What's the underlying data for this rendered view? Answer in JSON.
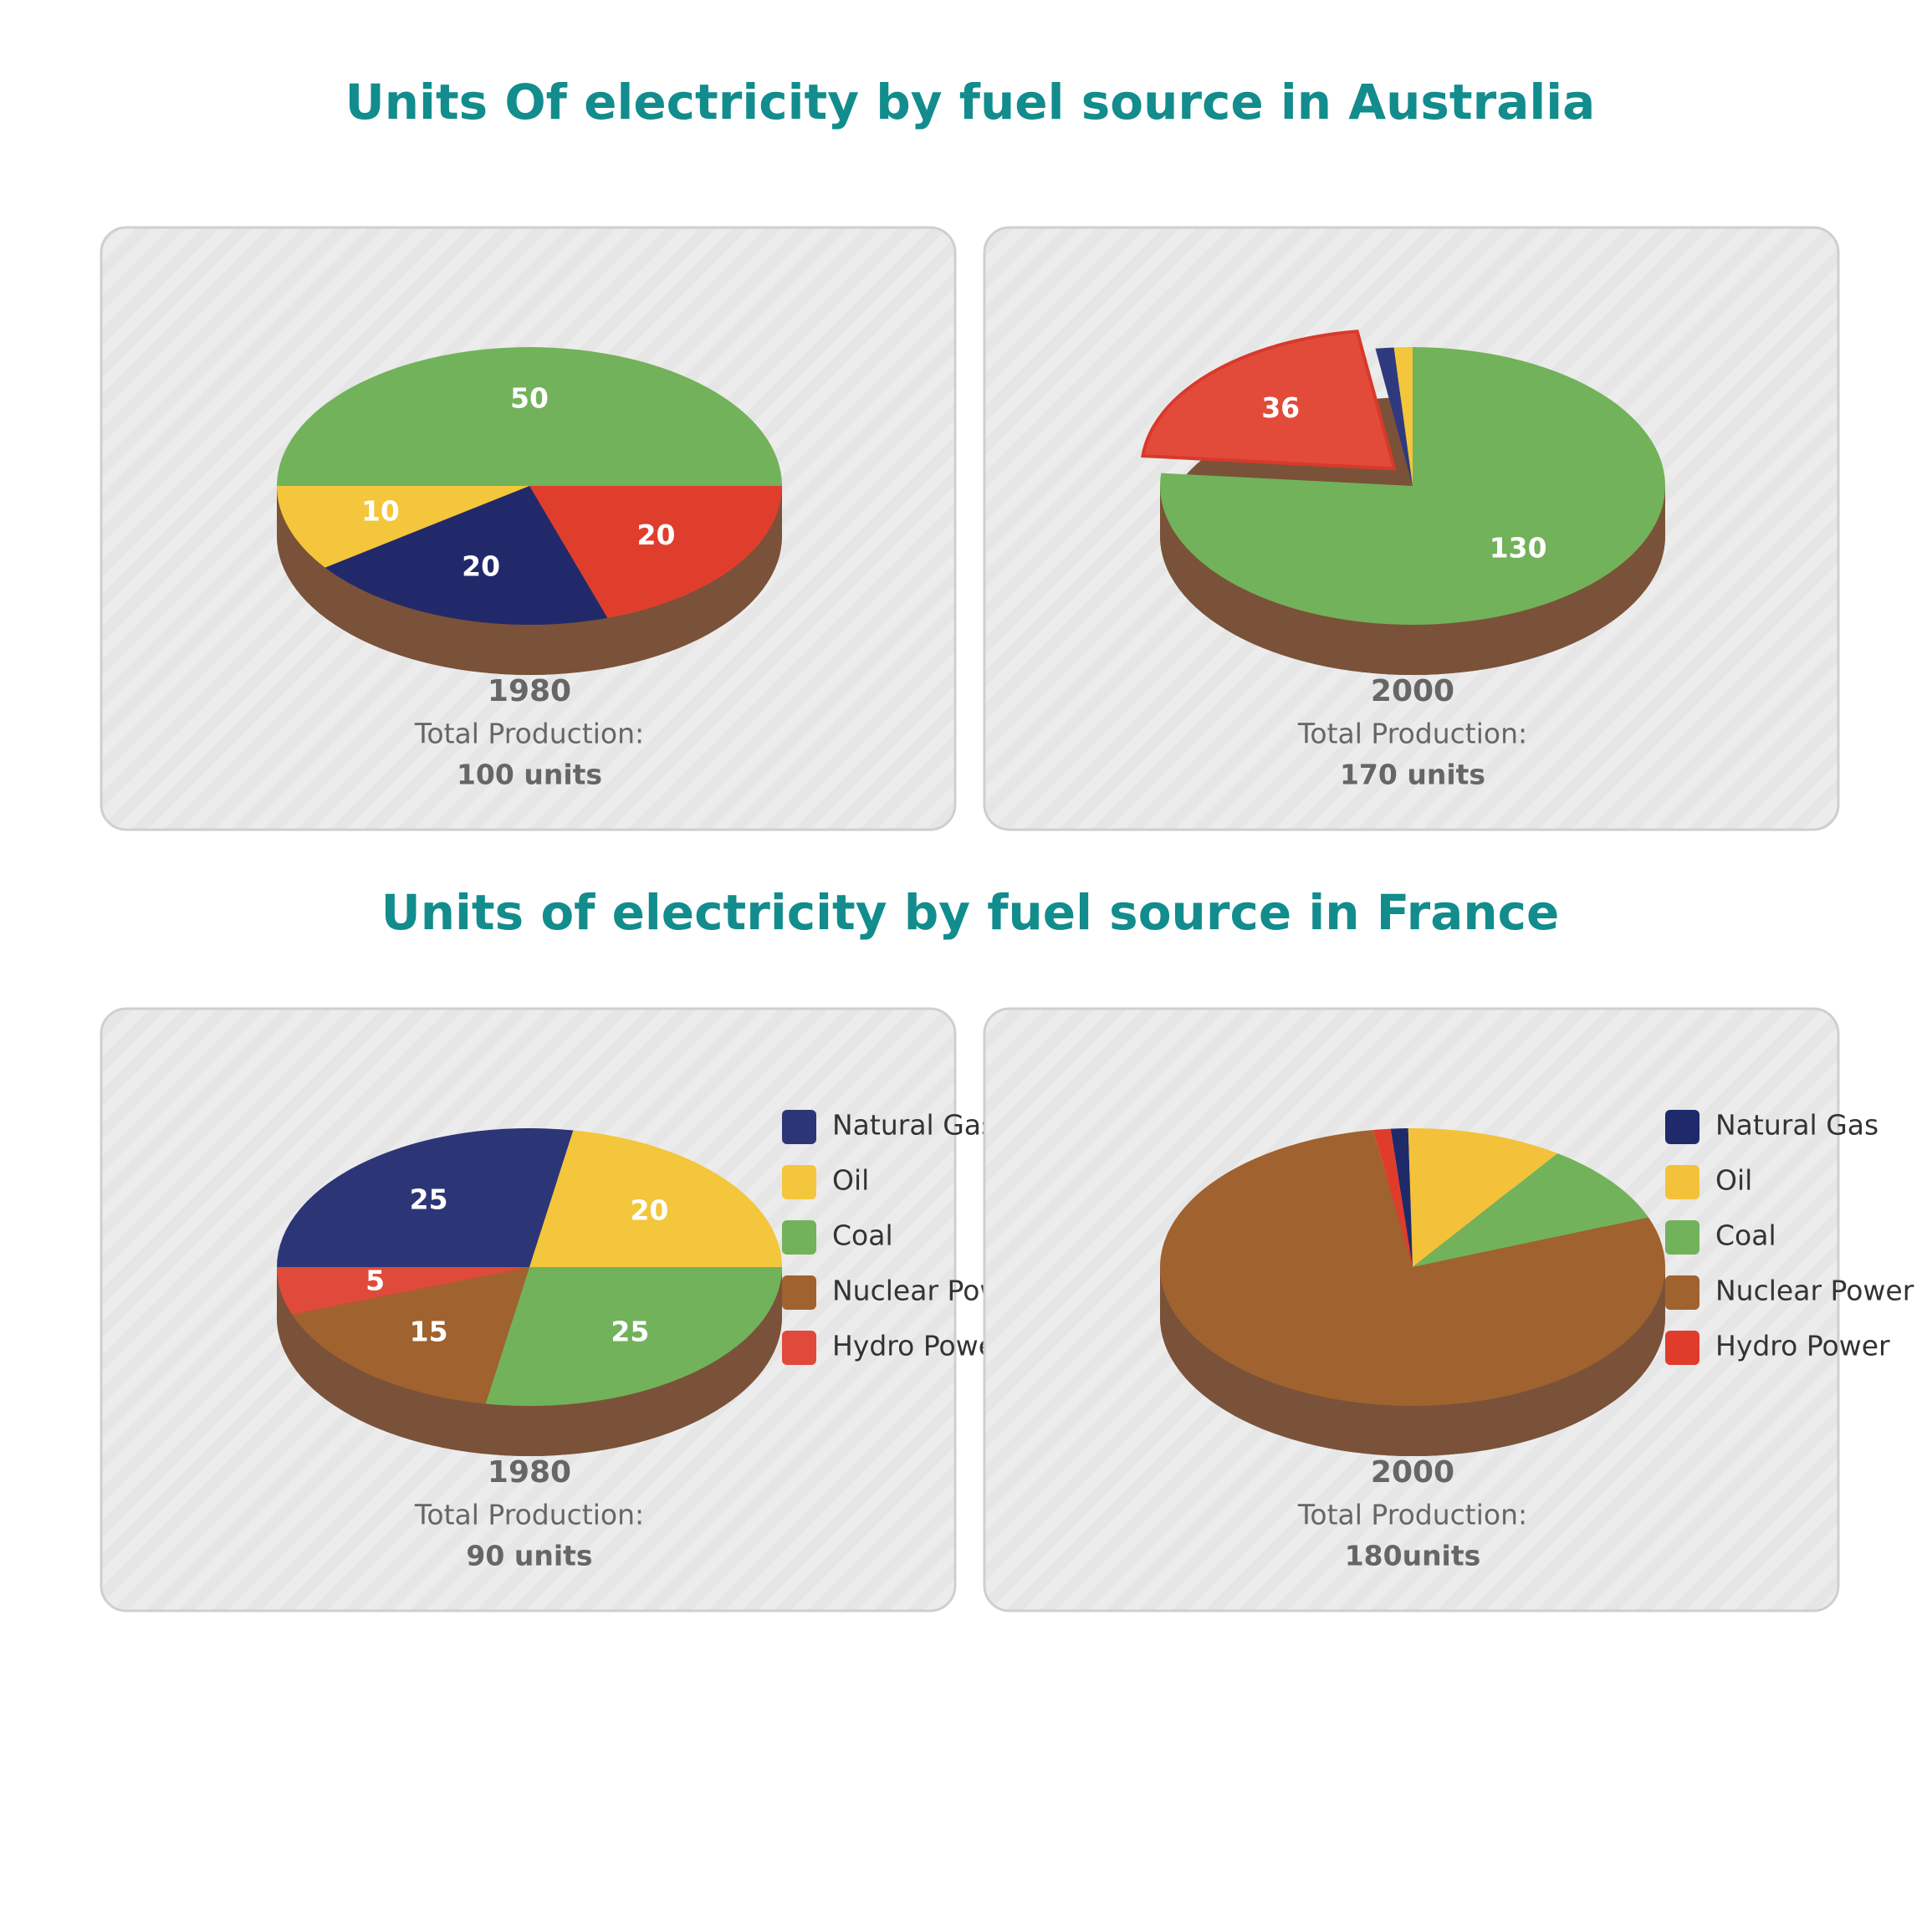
{
  "headings": [
    "Units Of electricity by fuel source in Australia",
    "Units of electricity by fuel source in France"
  ],
  "chart_data": [
    {
      "type": "pie",
      "year": "1980",
      "total_label": "Total Production:",
      "total": "100 units",
      "categories": [
        "Coal",
        "Hydro Power",
        "Natural Gas",
        "Oil"
      ],
      "values": [
        50,
        20,
        20,
        10
      ],
      "colors": [
        "#72b25a",
        "#e03e2d",
        "#22296b",
        "#f3c63c"
      ],
      "startangle": 180,
      "data_labels": true,
      "legend": false
    },
    {
      "type": "pie",
      "year": "2000",
      "total_label": "Total Production:",
      "total": "170 units",
      "categories": [
        "Coal",
        "Hydro Power",
        "Natural Gas",
        "Oil"
      ],
      "values": [
        130,
        36,
        2,
        2
      ],
      "colors": [
        "#72b25a",
        "#e24b3a",
        "#2f3a7e",
        "#f3c63c"
      ],
      "startangle": 90,
      "explode": "Hydro Power",
      "data_labels": true,
      "legend": false
    },
    {
      "type": "pie",
      "year": "1980",
      "total_label": "Total Production:",
      "total": "90 units",
      "categories": [
        "Natural Gas",
        "Oil",
        "Coal",
        "Nuclear Power",
        "Hydro Power"
      ],
      "values": [
        25,
        20,
        25,
        15,
        5
      ],
      "colors": [
        "#2c3677",
        "#f3c63c",
        "#72b25a",
        "#a0622f",
        "#e04a3a"
      ],
      "startangle": 180,
      "data_labels": true,
      "legend": true
    },
    {
      "type": "pie",
      "year": "2000",
      "total_label": "Total Production:",
      "total": "180units",
      "categories": [
        "Natural Gas",
        "Oil",
        "Coal",
        "Nuclear Power",
        "Hydro Power"
      ],
      "values": [
        2,
        18,
        17,
        141,
        2
      ],
      "colors": [
        "#1f2a6b",
        "#f3c23a",
        "#72b25a",
        "#a0622f",
        "#e03c2c"
      ],
      "startangle": 95,
      "data_labels": false,
      "legend": true
    }
  ]
}
